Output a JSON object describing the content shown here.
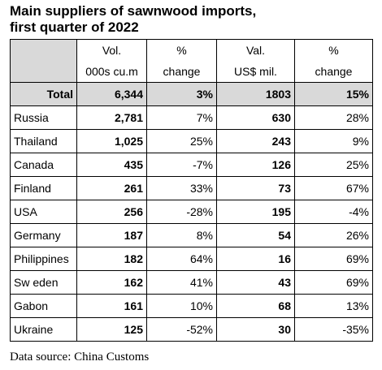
{
  "title_line1": "Main suppliers of sawnwood imports,",
  "title_line2": "first quarter of 2022",
  "header": {
    "vol_line1": "Vol.",
    "vol_line2": "000s cu.m",
    "volpct_line1": "%",
    "volpct_line2": "change",
    "val_line1": "Val.",
    "val_line2": "US$ mil.",
    "valpct_line1": "%",
    "valpct_line2": "change"
  },
  "total": {
    "label": "Total",
    "vol": "6,344",
    "vol_change": "3%",
    "val": "1803",
    "val_change": "15%"
  },
  "rows": [
    {
      "country": "Russia",
      "vol": "2,781",
      "vol_change": "7%",
      "val": "630",
      "val_change": "28%"
    },
    {
      "country": "Thailand",
      "vol": "1,025",
      "vol_change": "25%",
      "val": "243",
      "val_change": "9%"
    },
    {
      "country": "Canada",
      "vol": "435",
      "vol_change": "-7%",
      "val": "126",
      "val_change": "25%"
    },
    {
      "country": "Finland",
      "vol": "261",
      "vol_change": "33%",
      "val": "73",
      "val_change": "67%"
    },
    {
      "country": "USA",
      "vol": "256",
      "vol_change": "-28%",
      "val": "195",
      "val_change": "-4%"
    },
    {
      "country": "Germany",
      "vol": "187",
      "vol_change": "8%",
      "val": "54",
      "val_change": "26%"
    },
    {
      "country": "Philippines",
      "vol": "182",
      "vol_change": "64%",
      "val": "16",
      "val_change": "69%"
    },
    {
      "country": "Sw eden",
      "vol": "162",
      "vol_change": "41%",
      "val": "43",
      "val_change": "69%"
    },
    {
      "country": "Gabon",
      "vol": "161",
      "vol_change": "10%",
      "val": "68",
      "val_change": "13%"
    },
    {
      "country": "Ukraine",
      "vol": "125",
      "vol_change": "-52%",
      "val": "30",
      "val_change": "-35%"
    }
  ],
  "source": "Data source: China Customs"
}
